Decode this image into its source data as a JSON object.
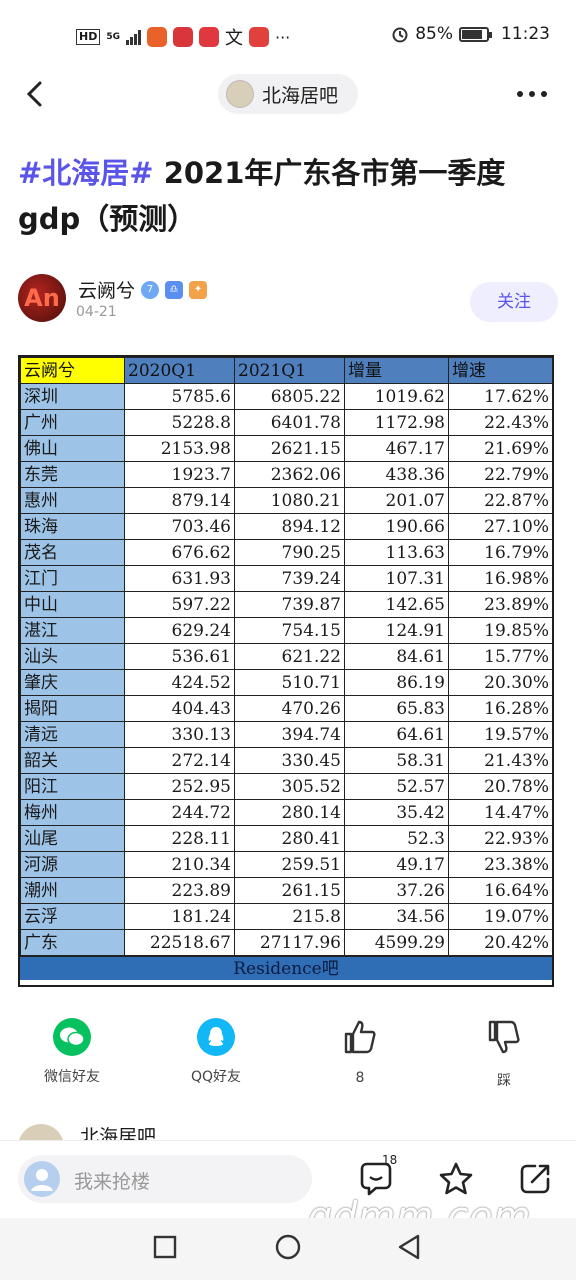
{
  "status_bar": {
    "hd": "HD",
    "network": "5G",
    "battery": "85%",
    "battery_level": 0.85,
    "time": "11:23",
    "more": "···"
  },
  "nav": {
    "back_icon": "chevron-left-icon",
    "forum_name": "北海居吧",
    "more_icon": "more-dots-icon"
  },
  "post": {
    "hashtag": "#北海居#",
    "title": " 2021年广东各市第一季度gdp（预测）",
    "author": {
      "avatar_text": "An",
      "name": "云阙兮",
      "level": "7",
      "date": "04-21"
    },
    "follow_label": "关注"
  },
  "gdp_table": {
    "headers": [
      "云阙兮",
      "2020Q1",
      "2021Q1",
      "增量",
      "增速"
    ],
    "rows": [
      [
        "深圳",
        "5785.6",
        "6805.22",
        "1019.62",
        "17.62%"
      ],
      [
        "广州",
        "5228.8",
        "6401.78",
        "1172.98",
        "22.43%"
      ],
      [
        "佛山",
        "2153.98",
        "2621.15",
        "467.17",
        "21.69%"
      ],
      [
        "东莞",
        "1923.7",
        "2362.06",
        "438.36",
        "22.79%"
      ],
      [
        "惠州",
        "879.14",
        "1080.21",
        "201.07",
        "22.87%"
      ],
      [
        "珠海",
        "703.46",
        "894.12",
        "190.66",
        "27.10%"
      ],
      [
        "茂名",
        "676.62",
        "790.25",
        "113.63",
        "16.79%"
      ],
      [
        "江门",
        "631.93",
        "739.24",
        "107.31",
        "16.98%"
      ],
      [
        "中山",
        "597.22",
        "739.87",
        "142.65",
        "23.89%"
      ],
      [
        "湛江",
        "629.24",
        "754.15",
        "124.91",
        "19.85%"
      ],
      [
        "汕头",
        "536.61",
        "621.22",
        "84.61",
        "15.77%"
      ],
      [
        "肇庆",
        "424.52",
        "510.71",
        "86.19",
        "20.30%"
      ],
      [
        "揭阳",
        "404.43",
        "470.26",
        "65.83",
        "16.28%"
      ],
      [
        "清远",
        "330.13",
        "394.74",
        "64.61",
        "19.57%"
      ],
      [
        "韶关",
        "272.14",
        "330.45",
        "58.31",
        "21.43%"
      ],
      [
        "阳江",
        "252.95",
        "305.52",
        "52.57",
        "20.78%"
      ],
      [
        "梅州",
        "244.72",
        "280.14",
        "35.42",
        "14.47%"
      ],
      [
        "汕尾",
        "228.11",
        "280.41",
        "52.3",
        "22.93%"
      ],
      [
        "河源",
        "210.34",
        "259.51",
        "49.17",
        "23.38%"
      ],
      [
        "潮州",
        "223.89",
        "261.15",
        "37.26",
        "16.64%"
      ],
      [
        "云浮",
        "181.24",
        "215.8",
        "34.56",
        "19.07%"
      ],
      [
        "广东",
        "22518.67",
        "27117.96",
        "4599.29",
        "20.42%"
      ]
    ],
    "footer": "Residence吧"
  },
  "share": {
    "wechat": "微信好友",
    "qq": "QQ好友",
    "like_count": "8",
    "dislike": "踩"
  },
  "next_item": {
    "name": "北海居吧"
  },
  "bottom_bar": {
    "placeholder": "我来抢楼",
    "comment_count": "18"
  },
  "watermark": "gdmm.com",
  "colors": {
    "accent": "#5a55e8",
    "header_blue": "#4f7fbd",
    "city_blue": "#9dc3e6",
    "corner_yellow": "#ffff00",
    "footer_blue": "#2f6eb5",
    "wechat_green": "#07c160",
    "qq_blue": "#12b7f5"
  }
}
